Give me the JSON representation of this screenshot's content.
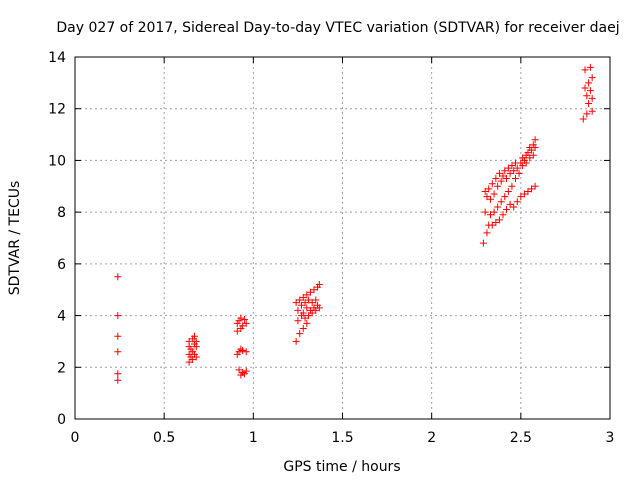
{
  "chart_data": {
    "type": "scatter",
    "title": "Day 027 of 2017, Sidereal Day-to-day VTEC variation (SDTVAR) for receiver daej",
    "xlabel": "GPS time / hours",
    "ylabel": "SDTVAR / TECUs",
    "xlim": [
      0,
      3
    ],
    "ylim": [
      0,
      14
    ],
    "xticks": [
      0,
      0.5,
      1,
      1.5,
      2,
      2.5,
      3
    ],
    "xtick_labels": [
      "0",
      "0.5",
      "1",
      "1.5",
      "2",
      "2.5",
      "3"
    ],
    "yticks": [
      0,
      2,
      4,
      6,
      8,
      10,
      12,
      14
    ],
    "ytick_labels": [
      "0",
      "2",
      "4",
      "6",
      "8",
      "10",
      "12",
      "14"
    ],
    "grid": true,
    "marker": "plus",
    "color": "#ff0000",
    "series": [
      {
        "name": "SDTVAR",
        "points": [
          [
            0.24,
            5.5
          ],
          [
            0.24,
            4.0
          ],
          [
            0.24,
            3.2
          ],
          [
            0.24,
            2.6
          ],
          [
            0.24,
            1.75
          ],
          [
            0.24,
            1.5
          ],
          [
            0.64,
            2.2
          ],
          [
            0.64,
            2.5
          ],
          [
            0.64,
            2.8
          ],
          [
            0.64,
            3.0
          ],
          [
            0.65,
            2.4
          ],
          [
            0.65,
            2.7
          ],
          [
            0.66,
            2.6
          ],
          [
            0.66,
            3.1
          ],
          [
            0.66,
            2.3
          ],
          [
            0.67,
            2.9
          ],
          [
            0.67,
            3.2
          ],
          [
            0.67,
            2.5
          ],
          [
            0.68,
            2.8
          ],
          [
            0.68,
            2.4
          ],
          [
            0.68,
            3.0
          ],
          [
            0.91,
            2.5
          ],
          [
            0.91,
            3.4
          ],
          [
            0.91,
            3.7
          ],
          [
            0.92,
            1.9
          ],
          [
            0.92,
            3.8
          ],
          [
            0.92,
            2.6
          ],
          [
            0.93,
            1.7
          ],
          [
            0.93,
            2.7
          ],
          [
            0.93,
            3.5
          ],
          [
            0.93,
            3.9
          ],
          [
            0.94,
            1.8
          ],
          [
            0.94,
            3.6
          ],
          [
            0.94,
            2.65
          ],
          [
            0.95,
            1.75
          ],
          [
            0.95,
            3.85
          ],
          [
            0.96,
            1.85
          ],
          [
            0.96,
            2.6
          ],
          [
            0.96,
            3.7
          ],
          [
            1.24,
            3.0
          ],
          [
            1.24,
            4.5
          ],
          [
            1.25,
            3.8
          ],
          [
            1.25,
            4.2
          ],
          [
            1.26,
            3.3
          ],
          [
            1.26,
            4.6
          ],
          [
            1.27,
            4.0
          ],
          [
            1.27,
            4.4
          ],
          [
            1.28,
            3.5
          ],
          [
            1.28,
            4.7
          ],
          [
            1.28,
            4.1
          ],
          [
            1.29,
            3.9
          ],
          [
            1.29,
            4.5
          ],
          [
            1.3,
            3.7
          ],
          [
            1.3,
            4.3
          ],
          [
            1.3,
            4.8
          ],
          [
            1.31,
            4.0
          ],
          [
            1.31,
            4.6
          ],
          [
            1.32,
            4.2
          ],
          [
            1.32,
            4.9
          ],
          [
            1.33,
            4.1
          ],
          [
            1.33,
            4.5
          ],
          [
            1.34,
            4.3
          ],
          [
            1.34,
            5.0
          ],
          [
            1.35,
            4.2
          ],
          [
            1.35,
            4.6
          ],
          [
            1.36,
            4.4
          ],
          [
            1.36,
            5.1
          ],
          [
            1.37,
            5.2
          ],
          [
            1.37,
            4.3
          ],
          [
            2.29,
            6.8
          ],
          [
            2.3,
            8.0
          ],
          [
            2.3,
            8.8
          ],
          [
            2.31,
            7.2
          ],
          [
            2.31,
            8.6
          ],
          [
            2.32,
            7.5
          ],
          [
            2.32,
            8.9
          ],
          [
            2.33,
            7.9
          ],
          [
            2.33,
            8.5
          ],
          [
            2.34,
            7.5
          ],
          [
            2.34,
            9.1
          ],
          [
            2.35,
            8.0
          ],
          [
            2.35,
            8.7
          ],
          [
            2.36,
            7.6
          ],
          [
            2.36,
            9.3
          ],
          [
            2.37,
            8.2
          ],
          [
            2.37,
            9.0
          ],
          [
            2.38,
            7.7
          ],
          [
            2.38,
            9.5
          ],
          [
            2.39,
            8.4
          ],
          [
            2.39,
            9.2
          ],
          [
            2.4,
            7.9
          ],
          [
            2.4,
            9.4
          ],
          [
            2.41,
            8.6
          ],
          [
            2.41,
            9.6
          ],
          [
            2.42,
            8.1
          ],
          [
            2.42,
            9.3
          ],
          [
            2.43,
            8.8
          ],
          [
            2.43,
            9.7
          ],
          [
            2.44,
            8.3
          ],
          [
            2.44,
            9.5
          ],
          [
            2.45,
            9.0
          ],
          [
            2.45,
            9.8
          ],
          [
            2.46,
            8.2
          ],
          [
            2.46,
            9.6
          ],
          [
            2.47,
            9.3
          ],
          [
            2.47,
            9.9
          ],
          [
            2.48,
            8.4
          ],
          [
            2.48,
            9.7
          ],
          [
            2.49,
            9.5
          ],
          [
            2.5,
            8.6
          ],
          [
            2.5,
            9.9
          ],
          [
            2.51,
            9.8
          ],
          [
            2.51,
            10.1
          ],
          [
            2.52,
            8.7
          ],
          [
            2.52,
            10.0
          ],
          [
            2.53,
            10.2
          ],
          [
            2.53,
            9.9
          ],
          [
            2.54,
            8.8
          ],
          [
            2.54,
            10.3
          ],
          [
            2.55,
            10.1
          ],
          [
            2.55,
            10.5
          ],
          [
            2.56,
            8.9
          ],
          [
            2.56,
            10.4
          ],
          [
            2.57,
            10.6
          ],
          [
            2.57,
            10.2
          ],
          [
            2.58,
            9.0
          ],
          [
            2.58,
            10.8
          ],
          [
            2.58,
            10.5
          ],
          [
            2.85,
            11.6
          ],
          [
            2.86,
            12.8
          ],
          [
            2.86,
            13.5
          ],
          [
            2.87,
            11.8
          ],
          [
            2.87,
            12.5
          ],
          [
            2.88,
            13.0
          ],
          [
            2.88,
            12.2
          ],
          [
            2.89,
            13.6
          ],
          [
            2.89,
            12.7
          ],
          [
            2.9,
            11.9
          ],
          [
            2.9,
            13.2
          ],
          [
            2.9,
            12.4
          ]
        ]
      }
    ]
  }
}
